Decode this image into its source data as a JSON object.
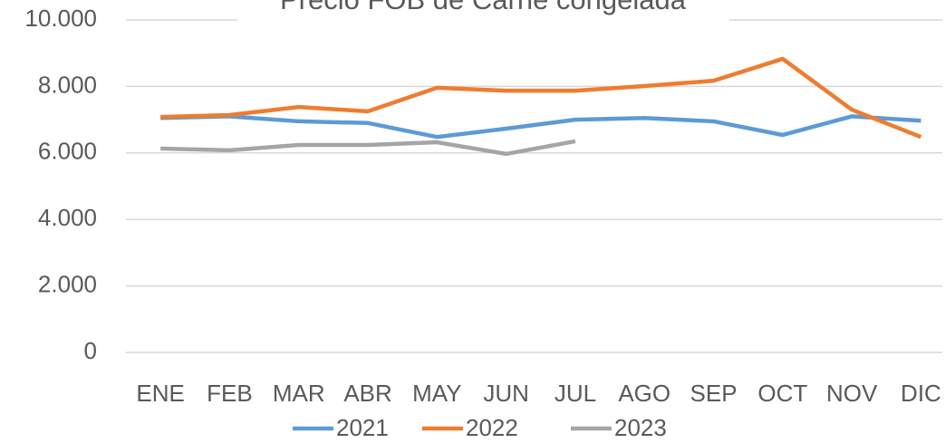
{
  "chart_data": {
    "type": "line",
    "title": "Precio FOB de Carne congelada",
    "categories": [
      "ENE",
      "FEB",
      "MAR",
      "ABR",
      "MAY",
      "JUN",
      "JUL",
      "AGO",
      "SEP",
      "OCT",
      "NOV",
      "DIC"
    ],
    "series": [
      {
        "name": "2021",
        "color": "#5b9bd5",
        "values": [
          7050,
          7100,
          6950,
          6900,
          6480,
          6730,
          7000,
          7050,
          6950,
          6540,
          7100,
          6970
        ]
      },
      {
        "name": "2022",
        "color": "#ed7d31",
        "values": [
          7080,
          7140,
          7380,
          7250,
          7960,
          7870,
          7870,
          8010,
          8170,
          8830,
          7300,
          6480
        ]
      },
      {
        "name": "2023",
        "color": "#a5a5a5",
        "values": [
          6130,
          6080,
          6240,
          6240,
          6320,
          5970,
          6350,
          null,
          null,
          null,
          null,
          null
        ]
      }
    ],
    "ylim": [
      0,
      10000
    ],
    "yticks": [
      0,
      {
        "value": 2000,
        "label": "2.000"
      },
      {
        "value": 4000,
        "label": "4.000"
      },
      {
        "value": 6000,
        "label": "6.000"
      },
      {
        "value": 8000,
        "label": "8.000"
      },
      {
        "value": 10000,
        "label": "10.000"
      }
    ],
    "grid": true,
    "legend": "bottom"
  }
}
